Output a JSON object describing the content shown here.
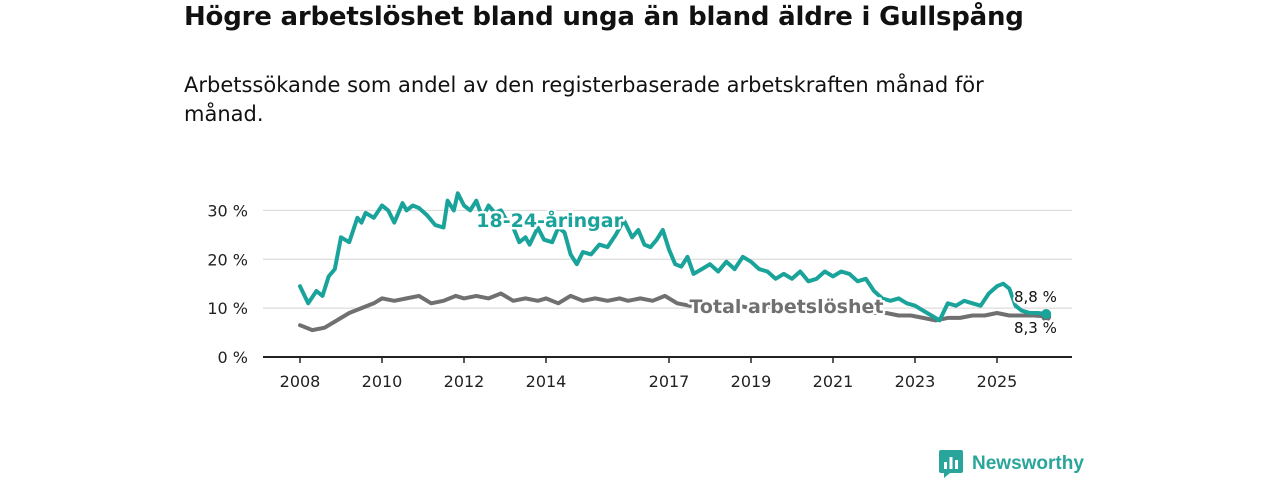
{
  "title": "Högre arbetslöshet bland unga än bland äldre i Gullspång",
  "subtitle": "Arbetssökande som andel av den registerbaserade arbetskraften månad för månad.",
  "brand": {
    "name": "Newsworthy",
    "icon": "newsworthy-logo-icon"
  },
  "colors": {
    "youth": "#1aa39a",
    "total": "#707070",
    "grid": "#dcdcdc",
    "axis": "#222222"
  },
  "chart_data": {
    "type": "line",
    "title": "Högre arbetslöshet bland unga än bland äldre i Gullspång",
    "xlabel": "",
    "ylabel": "",
    "ylim": [
      0,
      35
    ],
    "xlim": [
      2008,
      2026.5
    ],
    "x_ticks": [
      2008,
      2010,
      2012,
      2014,
      2017,
      2019,
      2021,
      2023,
      2025
    ],
    "x_tick_labels": [
      "2008",
      "2010",
      "2012",
      "2014",
      "2017",
      "2019",
      "2021",
      "2023",
      "2025"
    ],
    "y_ticks": [
      0,
      10,
      20,
      30
    ],
    "y_tick_labels": [
      "0 %",
      "10 %",
      "20 %",
      "30 %"
    ],
    "grid": "horizontal",
    "series": [
      {
        "name": "18-24-åringar",
        "label": "18-24-åringar",
        "x": [
          2008.0,
          2008.2,
          2008.4,
          2008.55,
          2008.7,
          2008.85,
          2009.0,
          2009.2,
          2009.4,
          2009.5,
          2009.6,
          2009.8,
          2010.0,
          2010.15,
          2010.3,
          2010.5,
          2010.6,
          2010.75,
          2010.9,
          2011.1,
          2011.3,
          2011.5,
          2011.6,
          2011.75,
          2011.85,
          2012.0,
          2012.15,
          2012.3,
          2012.45,
          2012.6,
          2012.75,
          2012.9,
          2013.0,
          2013.2,
          2013.35,
          2013.5,
          2013.6,
          2013.8,
          2013.95,
          2014.15,
          2014.3,
          2014.45,
          2014.6,
          2014.75,
          2014.9,
          2015.1,
          2015.3,
          2015.5,
          2015.7,
          2015.9,
          2016.1,
          2016.25,
          2016.4,
          2016.55,
          2016.7,
          2016.85,
          2017.0,
          2017.15,
          2017.3,
          2017.45,
          2017.6,
          2017.8,
          2018.0,
          2018.2,
          2018.4,
          2018.6,
          2018.8,
          2019.0,
          2019.2,
          2019.4,
          2019.6,
          2019.8,
          2020.0,
          2020.2,
          2020.4,
          2020.6,
          2020.8,
          2021.0,
          2021.2,
          2021.4,
          2021.6,
          2021.8,
          2022.0,
          2022.2,
          2022.4,
          2022.6,
          2022.8,
          2023.0,
          2023.2,
          2023.4,
          2023.6,
          2023.8,
          2024.0,
          2024.2,
          2024.4,
          2024.6,
          2024.8,
          2025.0,
          2025.15,
          2025.3,
          2025.45,
          2025.6,
          2025.8,
          2026.0,
          2026.2
        ],
        "values": [
          14.5,
          11.0,
          13.5,
          12.5,
          16.5,
          18.0,
          24.5,
          23.5,
          28.5,
          27.5,
          29.5,
          28.5,
          31.0,
          30.0,
          27.5,
          31.5,
          30.0,
          31.0,
          30.5,
          29.0,
          27.0,
          26.5,
          32.0,
          30.0,
          33.5,
          31.0,
          30.0,
          32.0,
          28.5,
          31.0,
          29.5,
          30.0,
          28.5,
          26.5,
          23.5,
          24.5,
          23.0,
          26.5,
          24.0,
          23.5,
          26.5,
          25.5,
          21.0,
          19.0,
          21.5,
          21.0,
          23.0,
          22.5,
          25.0,
          28.0,
          24.5,
          26.0,
          23.0,
          22.5,
          24.0,
          26.0,
          22.0,
          19.0,
          18.5,
          20.5,
          17.0,
          18.0,
          19.0,
          17.5,
          19.5,
          18.0,
          20.5,
          19.5,
          18.0,
          17.5,
          16.0,
          17.0,
          16.0,
          17.5,
          15.5,
          16.0,
          17.5,
          16.5,
          17.5,
          17.0,
          15.5,
          16.0,
          13.5,
          12.0,
          11.5,
          12.0,
          11.0,
          10.5,
          9.5,
          8.5,
          7.5,
          11.0,
          10.5,
          11.5,
          11.0,
          10.5,
          13.0,
          14.5,
          15.0,
          14.0,
          10.5,
          9.5,
          9.0,
          9.0,
          8.8
        ],
        "end_label": "8,8 %"
      },
      {
        "name": "Total arbetslöshet",
        "label": "Total arbetslöshet",
        "x": [
          2008.0,
          2008.3,
          2008.6,
          2008.9,
          2009.2,
          2009.5,
          2009.8,
          2010.0,
          2010.3,
          2010.6,
          2010.9,
          2011.2,
          2011.5,
          2011.8,
          2012.0,
          2012.3,
          2012.6,
          2012.9,
          2013.2,
          2013.5,
          2013.8,
          2014.0,
          2014.3,
          2014.6,
          2014.9,
          2015.2,
          2015.5,
          2015.8,
          2016.0,
          2016.3,
          2016.6,
          2016.9,
          2017.2,
          2017.5,
          2017.8,
          2018.1,
          2018.4,
          2018.7,
          2019.0,
          2019.3,
          2019.6,
          2019.9,
          2020.2,
          2020.5,
          2020.8,
          2021.1,
          2021.4,
          2021.7,
          2022.0,
          2022.3,
          2022.6,
          2022.9,
          2023.2,
          2023.5,
          2023.8,
          2024.1,
          2024.4,
          2024.7,
          2025.0,
          2025.3,
          2025.6,
          2025.9,
          2026.2
        ],
        "values": [
          6.5,
          5.5,
          6.0,
          7.5,
          9.0,
          10.0,
          11.0,
          12.0,
          11.5,
          12.0,
          12.5,
          11.0,
          11.5,
          12.5,
          12.0,
          12.5,
          12.0,
          13.0,
          11.5,
          12.0,
          11.5,
          12.0,
          11.0,
          12.5,
          11.5,
          12.0,
          11.5,
          12.0,
          11.5,
          12.0,
          11.5,
          12.5,
          11.0,
          10.5,
          10.5,
          10.0,
          10.5,
          10.5,
          10.0,
          10.5,
          10.0,
          10.5,
          10.0,
          10.0,
          10.0,
          9.5,
          10.0,
          9.5,
          9.0,
          9.0,
          8.5,
          8.5,
          8.0,
          7.5,
          8.0,
          8.0,
          8.5,
          8.5,
          9.0,
          8.5,
          8.5,
          8.5,
          8.3
        ],
        "end_label": "8,3 %"
      }
    ]
  }
}
